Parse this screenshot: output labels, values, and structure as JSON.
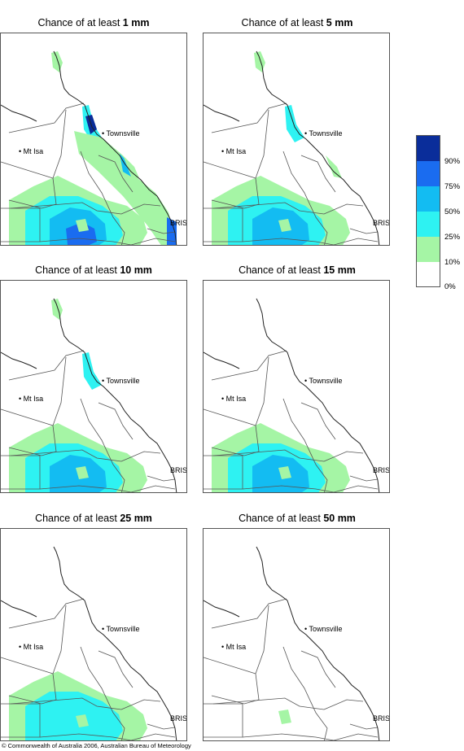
{
  "panels": [
    {
      "prefix": "Chance of at least ",
      "amount": "1 mm",
      "level": 5
    },
    {
      "prefix": "Chance of at least ",
      "amount": "5 mm",
      "level": 4
    },
    {
      "prefix": "Chance of at least ",
      "amount": "10 mm",
      "level": 3
    },
    {
      "prefix": "Chance of at least ",
      "amount": "15 mm",
      "level": 2.5
    },
    {
      "prefix": "Chance of at least ",
      "amount": "25 mm",
      "level": 2
    },
    {
      "prefix": "Chance of at least ",
      "amount": "50 mm",
      "level": 1
    }
  ],
  "places": {
    "townsville": "Townsville",
    "mt_isa": "Mt Isa",
    "bris": "BRIS"
  },
  "legend": {
    "labels": [
      "90%",
      "75%",
      "50%",
      "25%",
      "10%",
      "0%"
    ],
    "colors": [
      "#0a2d9a",
      "#1a6cf0",
      "#13bcf2",
      "#2ef2f2",
      "#a5f5a5",
      "#ffffff"
    ]
  },
  "footer": "© Commonwealth of Australia 2006, Australian Bureau of Meteorology"
}
